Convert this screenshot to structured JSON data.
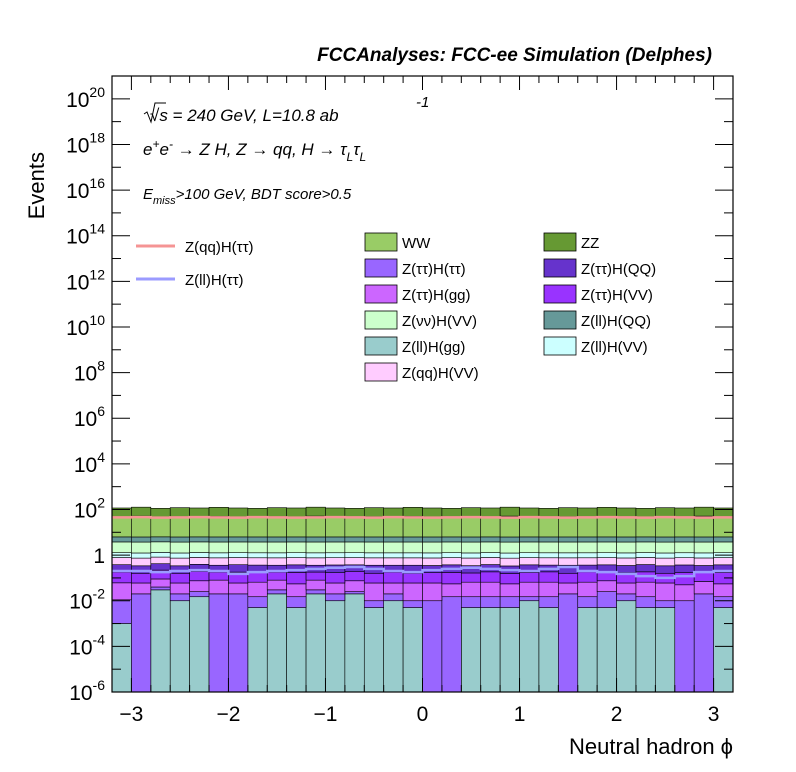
{
  "title": "FCCAnalyses: FCC-ee Simulation (Delphes)",
  "annotations": {
    "energy": "√s = 240 GeV, L=10.8 ab",
    "energy_sup": "-1",
    "process_e": "e",
    "process_plus": "+",
    "process_e2": "e",
    "process_minus": "-",
    "process_rest": " → Z H, Z → qq, H → τ",
    "process_sub1": "L",
    "process_tau2": "τ",
    "process_sub2": "L",
    "cut_E": "E",
    "cut_sub": "miss",
    "cut_rest": ">100 GeV, BDT score>0.5"
  },
  "axes": {
    "xlabel": "Neutral hadron ϕ",
    "ylabel": "Events",
    "x_ticks": [
      "−3",
      "−2",
      "−1",
      "0",
      "1",
      "2",
      "3"
    ],
    "y_ticks": [
      {
        "base": "10",
        "exp": "20"
      },
      {
        "base": "10",
        "exp": "18"
      },
      {
        "base": "10",
        "exp": "16"
      },
      {
        "base": "10",
        "exp": "14"
      },
      {
        "base": "10",
        "exp": "12"
      },
      {
        "base": "10",
        "exp": "10"
      },
      {
        "base": "10",
        "exp": "8"
      },
      {
        "base": "10",
        "exp": "6"
      },
      {
        "base": "10",
        "exp": "4"
      },
      {
        "base": "10",
        "exp": "2"
      },
      {
        "base": "1",
        "exp": ""
      },
      {
        "base": "10",
        "exp": "-2"
      },
      {
        "base": "10",
        "exp": "-4"
      },
      {
        "base": "10",
        "exp": "-6"
      }
    ]
  },
  "legend": {
    "lines": [
      {
        "label": "Z(qq)H(ττ)",
        "color": "#f59494"
      },
      {
        "label": "Z(ll)H(ττ)",
        "color": "#9b9bff"
      }
    ],
    "boxes": [
      {
        "label": "WW",
        "color": "#99cc66"
      },
      {
        "label": "ZZ",
        "color": "#669933"
      },
      {
        "label": "Z(ττ)H(ττ)",
        "color": "#9966ff"
      },
      {
        "label": "Z(ττ)H(QQ)",
        "color": "#6633cc"
      },
      {
        "label": "Z(ττ)H(gg)",
        "color": "#cc66ff"
      },
      {
        "label": "Z(ττ)H(VV)",
        "color": "#9933ff"
      },
      {
        "label": "Z(νν)H(VV)",
        "color": "#ccffcc"
      },
      {
        "label": "Z(ll)H(QQ)",
        "color": "#669999"
      },
      {
        "label": "Z(ll)H(gg)",
        "color": "#99cccc"
      },
      {
        "label": "Z(ll)H(VV)",
        "color": "#ccffff"
      },
      {
        "label": "Z(qq)H(VV)",
        "color": "#ffccff"
      }
    ]
  },
  "chart_data": {
    "type": "area",
    "title": "FCCAnalyses: FCC-ee Simulation (Delphes)",
    "xlabel": "Neutral hadron ϕ",
    "ylabel": "Events",
    "xlim": [
      -3.2,
      3.2
    ],
    "ylim": [
      1e-06,
      1e+21
    ],
    "log_y": true,
    "grid": false,
    "legend_position": "top",
    "bin_edges": [
      -3.2,
      -3.0,
      -2.8,
      -2.6,
      -2.4,
      -2.2,
      -2.0,
      -1.8,
      -1.6,
      -1.4,
      -1.2,
      -1.0,
      -0.8,
      -0.6,
      -0.4,
      -0.2,
      0.0,
      0.2,
      0.4,
      0.6,
      0.8,
      1.0,
      1.2,
      1.4,
      1.6,
      1.8,
      2.0,
      2.2,
      2.4,
      2.6,
      2.8,
      3.0,
      3.2
    ],
    "stacked_series": [
      {
        "name": "Z(ll)H(gg)",
        "color": "#99cccc",
        "values": [
          0.001,
          1e-06,
          0.03,
          0.01,
          0.015,
          1e-06,
          1e-06,
          0.005,
          0.02,
          0.005,
          0.02,
          0.01,
          0.02,
          0.005,
          0.01,
          0.005,
          1e-06,
          1e-06,
          0.005,
          0.005,
          0.005,
          0.01,
          0.005,
          1e-06,
          0.005,
          0.005,
          0.01,
          0.005,
          0.005,
          1e-06,
          1e-06,
          0.005
        ]
      },
      {
        "name": "Z(ττ)H(ττ)",
        "color": "#9966ff",
        "values": [
          0.01,
          0.02,
          0.01,
          0.01,
          0.01,
          0.02,
          0.02,
          0.01,
          0.01,
          0.01,
          0.01,
          0.01,
          0.005,
          0.005,
          0.01,
          0.005,
          0.01,
          0.015,
          0.01,
          0.01,
          0.01,
          0.005,
          0.01,
          0.02,
          0.01,
          0.02,
          0.01,
          0.01,
          0.005,
          0.01,
          0.02,
          0.01
        ]
      },
      {
        "name": "Z(ττ)H(gg)",
        "color": "#cc66ff",
        "values": [
          0.05,
          0.04,
          0.05,
          0.04,
          0.05,
          0.06,
          0.04,
          0.05,
          0.05,
          0.04,
          0.05,
          0.04,
          0.05,
          0.05,
          0.04,
          0.05,
          0.05,
          0.04,
          0.05,
          0.05,
          0.04,
          0.05,
          0.05,
          0.04,
          0.05,
          0.05,
          0.04,
          0.05,
          0.05,
          0.04,
          0.05,
          0.04
        ]
      },
      {
        "name": "Z(ττ)H(VV)",
        "color": "#9933ff",
        "values": [
          0.12,
          0.1,
          0.13,
          0.1,
          0.12,
          0.1,
          0.12,
          0.11,
          0.1,
          0.12,
          0.1,
          0.11,
          0.12,
          0.1,
          0.12,
          0.1,
          0.11,
          0.12,
          0.1,
          0.12,
          0.1,
          0.11,
          0.12,
          0.1,
          0.12,
          0.1,
          0.11,
          0.12,
          0.1,
          0.12,
          0.1,
          0.12
        ]
      },
      {
        "name": "Z(ττ)H(QQ)",
        "color": "#6633cc",
        "values": [
          0.2,
          0.18,
          0.2,
          0.18,
          0.2,
          0.18,
          0.2,
          0.19,
          0.18,
          0.2,
          0.18,
          0.2,
          0.18,
          0.2,
          0.18,
          0.2,
          0.18,
          0.2,
          0.18,
          0.2,
          0.18,
          0.2,
          0.18,
          0.2,
          0.18,
          0.2,
          0.18,
          0.2,
          0.18,
          0.2,
          0.18,
          0.2
        ]
      },
      {
        "name": "Z(qq)H(VV)",
        "color": "#ffccff",
        "values": [
          0.4,
          0.4,
          0.4,
          0.4,
          0.4,
          0.4,
          0.4,
          0.4,
          0.4,
          0.4,
          0.4,
          0.4,
          0.4,
          0.4,
          0.4,
          0.4,
          0.4,
          0.4,
          0.4,
          0.4,
          0.4,
          0.4,
          0.4,
          0.4,
          0.4,
          0.4,
          0.4,
          0.4,
          0.4,
          0.4,
          0.4,
          0.4
        ]
      },
      {
        "name": "Z(ll)H(VV)",
        "color": "#ccffff",
        "values": [
          0.5,
          0.5,
          0.5,
          0.5,
          0.5,
          0.5,
          0.5,
          0.5,
          0.5,
          0.5,
          0.5,
          0.5,
          0.5,
          0.5,
          0.5,
          0.5,
          0.5,
          0.5,
          0.5,
          0.5,
          0.5,
          0.5,
          0.5,
          0.5,
          0.5,
          0.5,
          0.5,
          0.5,
          0.5,
          0.5,
          0.5,
          0.5
        ]
      },
      {
        "name": "Z(νν)H(VV)",
        "color": "#ccffcc",
        "values": [
          2.5,
          2.5,
          2.5,
          2.5,
          2.5,
          2.5,
          2.5,
          2.5,
          2.5,
          2.5,
          2.5,
          2.5,
          2.5,
          2.5,
          2.5,
          2.5,
          2.5,
          2.5,
          2.5,
          2.5,
          2.5,
          2.5,
          2.5,
          2.5,
          2.5,
          2.5,
          2.5,
          2.5,
          2.5,
          2.5,
          2.5,
          2.5
        ]
      },
      {
        "name": "Z(ll)H(QQ)",
        "color": "#669999",
        "values": [
          2.5,
          2.5,
          2.5,
          2.5,
          2.5,
          2.5,
          2.5,
          2.5,
          2.5,
          2.5,
          2.5,
          2.5,
          2.5,
          2.5,
          2.5,
          2.5,
          2.5,
          2.5,
          2.5,
          2.5,
          2.5,
          2.5,
          2.5,
          2.5,
          2.5,
          2.5,
          2.5,
          2.5,
          2.5,
          2.5,
          2.5,
          2.5
        ]
      },
      {
        "name": "WW",
        "color": "#99cc66",
        "values": [
          40,
          45,
          38,
          42,
          40,
          44,
          40,
          38,
          42,
          40,
          45,
          40,
          38,
          42,
          40,
          44,
          40,
          38,
          42,
          40,
          45,
          40,
          38,
          42,
          40,
          44,
          40,
          38,
          42,
          40,
          45,
          40
        ]
      },
      {
        "name": "ZZ",
        "color": "#669933",
        "values": [
          70,
          75,
          68,
          72,
          70,
          74,
          70,
          68,
          72,
          70,
          75,
          70,
          68,
          72,
          70,
          74,
          70,
          68,
          72,
          70,
          75,
          70,
          68,
          72,
          70,
          74,
          70,
          68,
          72,
          70,
          75,
          70
        ]
      }
    ],
    "line_series": [
      {
        "name": "Z(qq)H(ττ)",
        "color": "#f59494",
        "values": [
          45,
          46,
          44,
          45,
          46,
          45,
          44,
          46,
          45,
          44,
          45,
          46,
          45,
          44,
          46,
          45,
          44,
          45,
          46,
          45,
          44,
          46,
          45,
          44,
          45,
          46,
          45,
          44,
          46,
          45,
          44,
          45
        ]
      },
      {
        "name": "Z(ll)H(ττ)",
        "color": "#9b9bff",
        "values": [
          0.2,
          0.2,
          0.18,
          0.2,
          0.22,
          0.2,
          0.15,
          0.18,
          0.2,
          0.22,
          0.25,
          0.28,
          0.3,
          0.25,
          0.2,
          0.18,
          0.22,
          0.25,
          0.28,
          0.25,
          0.22,
          0.2,
          0.25,
          0.3,
          0.2,
          0.18,
          0.15,
          0.12,
          0.1,
          0.12,
          0.18,
          0.2
        ]
      }
    ]
  }
}
